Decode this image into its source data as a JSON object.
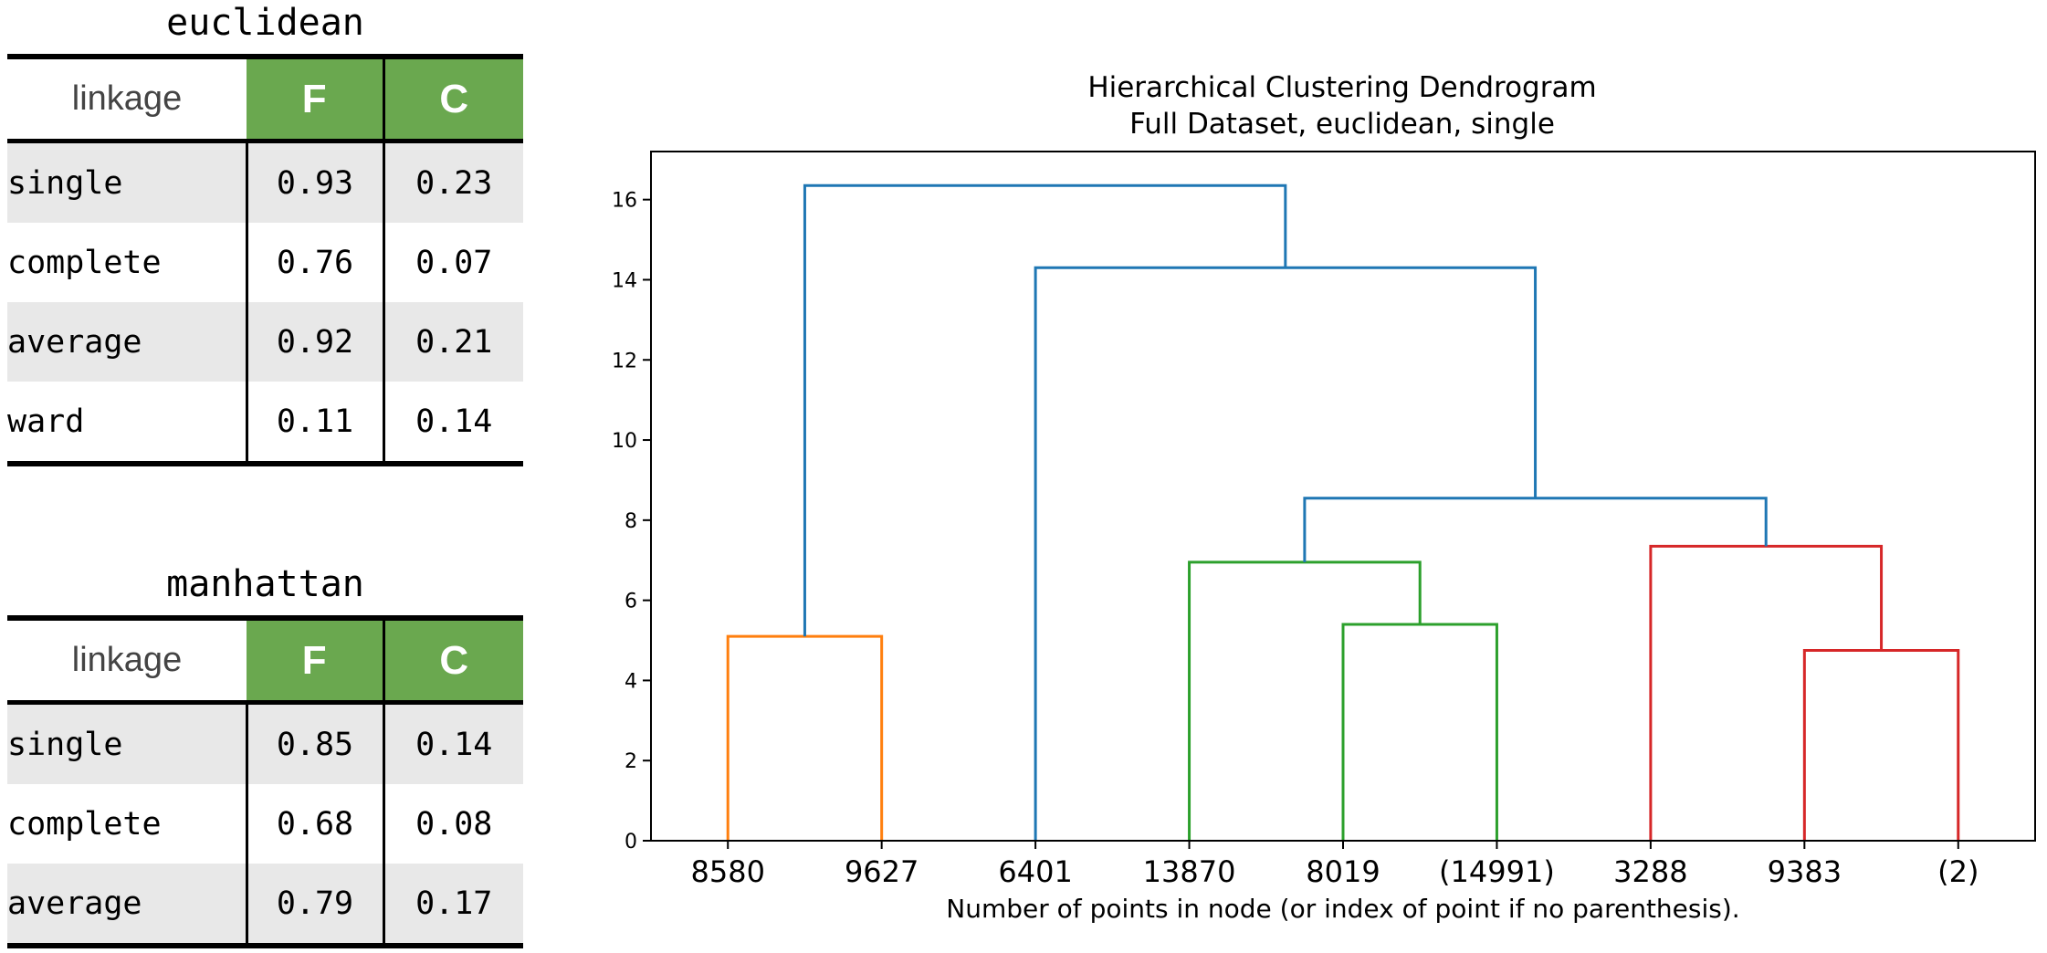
{
  "tables": [
    {
      "title": "euclidean",
      "headers": [
        "linkage",
        "F",
        "C"
      ],
      "rows": [
        {
          "linkage": "single",
          "F": "0.93",
          "C": "0.23"
        },
        {
          "linkage": "complete",
          "F": "0.76",
          "C": "0.07"
        },
        {
          "linkage": "average",
          "F": "0.92",
          "C": "0.21"
        },
        {
          "linkage": "ward",
          "F": "0.11",
          "C": "0.14"
        }
      ]
    },
    {
      "title": "manhattan",
      "headers": [
        "linkage",
        "F",
        "C"
      ],
      "rows": [
        {
          "linkage": "single",
          "F": "0.85",
          "C": "0.14"
        },
        {
          "linkage": "complete",
          "F": "0.68",
          "C": "0.08"
        },
        {
          "linkage": "average",
          "F": "0.79",
          "C": "0.17"
        }
      ]
    }
  ],
  "chart_data": {
    "type": "dendrogram",
    "title": "Hierarchical Clustering Dendrogram",
    "subtitle": "Full Dataset, euclidean, single",
    "xlabel": "Number of points in node (or index of point if no parenthesis).",
    "ylabel": "",
    "ylim": [
      0,
      17.2
    ],
    "yticks": [
      0,
      2,
      4,
      6,
      8,
      10,
      12,
      14,
      16
    ],
    "leaves": [
      "8580",
      "9627",
      "6401",
      "13870",
      "8019",
      "(14991)",
      "3288",
      "9383",
      "(2)"
    ],
    "colors": {
      "c1": "#ff7f0e",
      "c2": "#2ca02c",
      "c3": "#d62728",
      "above": "#1f77b4"
    },
    "merges": [
      {
        "left": {
          "leaf": 0
        },
        "right": {
          "leaf": 1
        },
        "height": 5.1,
        "color": "c1"
      },
      {
        "left": {
          "leaf": 4
        },
        "right": {
          "leaf": 5
        },
        "height": 5.4,
        "color": "c2"
      },
      {
        "left": {
          "leaf": 3
        },
        "right": {
          "merge": 1
        },
        "height": 6.95,
        "color": "c2"
      },
      {
        "left": {
          "leaf": 7
        },
        "right": {
          "leaf": 8
        },
        "height": 4.75,
        "color": "c3"
      },
      {
        "left": {
          "leaf": 6
        },
        "right": {
          "merge": 3
        },
        "height": 7.35,
        "color": "c3"
      },
      {
        "left": {
          "merge": 2
        },
        "right": {
          "merge": 4
        },
        "height": 8.55,
        "color": "above"
      },
      {
        "left": {
          "leaf": 2
        },
        "right": {
          "merge": 5
        },
        "height": 14.3,
        "color": "above"
      },
      {
        "left": {
          "merge": 0
        },
        "right": {
          "merge": 6
        },
        "height": 16.35,
        "color": "above"
      }
    ]
  }
}
